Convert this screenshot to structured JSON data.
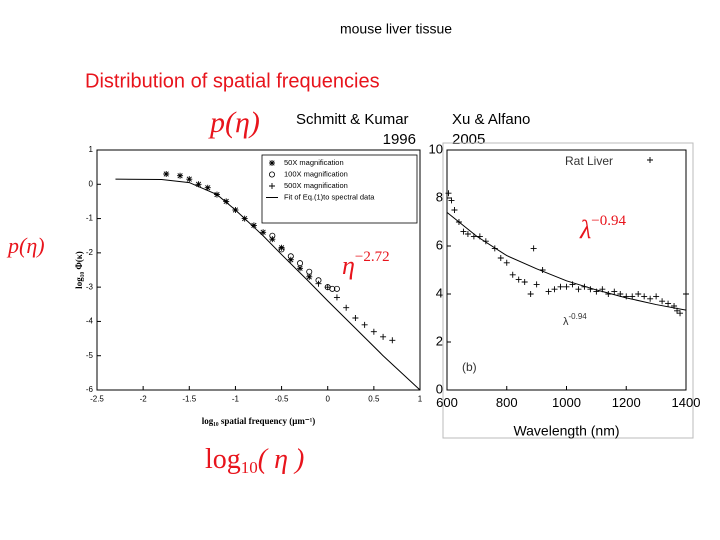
{
  "slide": {
    "subtitle": "mouse liver tissue",
    "title": "Distribution of spatial frequencies",
    "p_top": "p(η)",
    "p_left": "p(η)",
    "ref1_name": "Schmitt & Kumar",
    "ref1_year": "1996",
    "ref2_name": "Xu & Alfano",
    "ref2_year": "2005",
    "power1": {
      "base": "η",
      "exponent": "−2.72"
    },
    "power2": {
      "base": "λ",
      "exponent": "−0.94"
    },
    "xlog": {
      "base": "log",
      "sub": "10",
      "rest": "( η )"
    }
  },
  "chart_data": [
    {
      "type": "scatter",
      "xlabel": "log₁₀ spatial frequency (μm⁻¹)",
      "ylabel": "log₁₀ Φ(κ)",
      "xlim": [
        -2.5,
        1
      ],
      "ylim": [
        -6,
        1
      ],
      "xticks": [
        -2.5,
        -2,
        -1.5,
        -1,
        -0.5,
        0,
        0.5,
        1
      ],
      "yticks": [
        -6,
        -5,
        -4,
        -3,
        -2,
        -1,
        0,
        1
      ],
      "legend": "upper right",
      "series": [
        {
          "name": "50X magnification",
          "marker": "asterisk",
          "color": "#000000",
          "x": [
            -1.75,
            -1.6,
            -1.5,
            -1.4,
            -1.3,
            -1.2,
            -1.1,
            -1.0,
            -0.9,
            -0.8,
            -0.7,
            -0.6,
            -0.5,
            -0.4,
            -0.3,
            -0.2
          ],
          "values": [
            0.3,
            0.25,
            0.15,
            0.0,
            -0.1,
            -0.3,
            -0.5,
            -0.75,
            -1.0,
            -1.2,
            -1.4,
            -1.6,
            -1.85,
            -2.2,
            -2.45,
            -2.7
          ]
        },
        {
          "name": "100X magnification",
          "marker": "circle",
          "color": "#000000",
          "x": [
            -0.6,
            -0.5,
            -0.4,
            -0.3,
            -0.2,
            -0.1,
            0,
            0.05,
            0.1
          ],
          "values": [
            -1.5,
            -1.9,
            -2.1,
            -2.3,
            -2.55,
            -2.8,
            -3.0,
            -3.05,
            -3.05
          ]
        },
        {
          "name": "500X magnification",
          "marker": "plus",
          "color": "#000000",
          "x": [
            -0.1,
            0,
            0.1,
            0.2,
            0.3,
            0.4,
            0.5,
            0.6,
            0.7
          ],
          "values": [
            -2.9,
            -3.0,
            -3.3,
            -3.6,
            -3.9,
            -4.1,
            -4.3,
            -4.45,
            -4.55
          ]
        },
        {
          "name": "Fit of Eq.(1)to spectral data",
          "marker": "line",
          "color": "#000000",
          "x": [
            -2.3,
            -1.8,
            -1.5,
            -1.2,
            -1.0,
            -0.7,
            -0.5,
            -0.2,
            0,
            0.3,
            0.6,
            1.0
          ],
          "values": [
            0.15,
            0.14,
            0.05,
            -0.3,
            -0.75,
            -1.5,
            -2.05,
            -2.85,
            -3.4,
            -4.2,
            -5.0,
            -6.0
          ]
        }
      ]
    },
    {
      "type": "scatter",
      "xlabel": "Wavelength (nm)",
      "xlim": [
        600,
        1400
      ],
      "ylim": [
        0,
        10
      ],
      "xticks": [
        600,
        800,
        1000,
        1200,
        1400
      ],
      "yticks": [
        0,
        2,
        4,
        6,
        8,
        10
      ],
      "legend": "upper right",
      "annotations": [
        {
          "base": "λ",
          "exponent": "-0.94"
        },
        "(b)"
      ],
      "series": [
        {
          "name": "Rat Liver",
          "marker": "plus",
          "color": "#000000",
          "x": [
            605,
            615,
            625,
            640,
            655,
            670,
            690,
            710,
            730,
            760,
            780,
            800,
            820,
            840,
            860,
            880,
            890,
            900,
            920,
            940,
            960,
            980,
            1000,
            1020,
            1040,
            1060,
            1080,
            1100,
            1120,
            1140,
            1160,
            1180,
            1200,
            1220,
            1240,
            1260,
            1280,
            1300,
            1320,
            1340,
            1360,
            1370,
            1380,
            1400
          ],
          "values": [
            8.2,
            7.9,
            7.5,
            7.0,
            6.6,
            6.5,
            6.4,
            6.4,
            6.2,
            5.9,
            5.5,
            5.3,
            4.8,
            4.6,
            4.5,
            4.0,
            5.9,
            4.4,
            5.0,
            4.1,
            4.2,
            4.3,
            4.3,
            4.4,
            4.2,
            4.3,
            4.2,
            4.1,
            4.2,
            4.0,
            4.1,
            4.0,
            3.9,
            3.9,
            4.0,
            3.9,
            3.8,
            3.9,
            3.7,
            3.6,
            3.5,
            3.3,
            3.2,
            4.0
          ]
        },
        {
          "name": null,
          "marker": "line",
          "color": "#000000",
          "x": [
            600,
            700,
            800,
            900,
            1000,
            1100,
            1200,
            1300,
            1400
          ],
          "values": [
            7.4,
            6.4,
            5.6,
            5.05,
            4.55,
            4.17,
            3.84,
            3.56,
            3.33
          ]
        }
      ]
    }
  ]
}
